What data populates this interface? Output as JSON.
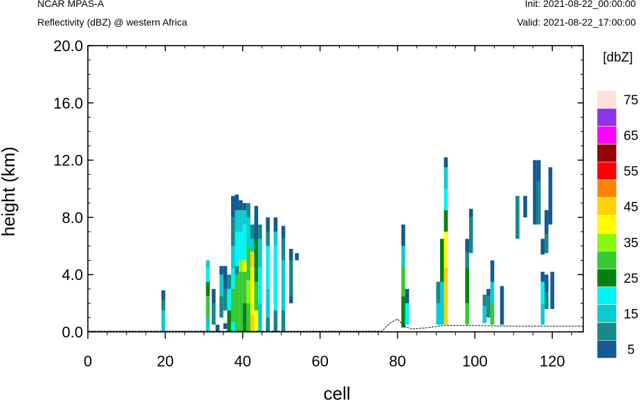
{
  "header": {
    "model": "NCAR MPAS-A",
    "field": "Reflectivity (dBZ) @ western Africa",
    "init": "Init: 2021-08-22_00:00:00",
    "valid": "Valid: 2021-08-22_17:00:00"
  },
  "chart_data": {
    "type": "heatmap",
    "xlabel": "cell",
    "ylabel": "height (km)",
    "xlim": [
      0,
      128
    ],
    "ylim": [
      0,
      20
    ],
    "x_ticks": [
      "0",
      "20",
      "40",
      "60",
      "80",
      "100",
      "120"
    ],
    "y_ticks": [
      "0.0",
      "4.0",
      "8.0",
      "12.0",
      "16.0",
      "20.0"
    ],
    "colorbar": {
      "title": "[dbZ]",
      "labels": [
        "5",
        "15",
        "25",
        "35",
        "45",
        "55",
        "65",
        "75"
      ],
      "colors": [
        "#155a91",
        "#16898a",
        "#0ccbd2",
        "#00f4f4",
        "#03820f",
        "#37c932",
        "#86f90d",
        "#ffff00",
        "#fdd202",
        "#fe8502",
        "#ff0000",
        "#940404",
        "#ff00ff",
        "#8d35e6",
        "#fde2db"
      ]
    },
    "terrain": [
      [
        0,
        0.05
      ],
      [
        76,
        0.05
      ],
      [
        78,
        0.6
      ],
      [
        80,
        0.9
      ],
      [
        82,
        0.35
      ],
      [
        84,
        0.2
      ],
      [
        88,
        0.3
      ],
      [
        92,
        0.45
      ],
      [
        100,
        0.45
      ],
      [
        108,
        0.4
      ],
      [
        120,
        0.4
      ],
      [
        128,
        0.4
      ]
    ],
    "columns": [
      {
        "x": 19.5,
        "segments": [
          [
            0,
            1.5,
            2
          ],
          [
            1.5,
            2.2,
            1
          ],
          [
            2.2,
            2.9,
            0
          ]
        ]
      },
      {
        "x": 31,
        "segments": [
          [
            0,
            1,
            2
          ],
          [
            1,
            2.5,
            5
          ],
          [
            2.5,
            3.5,
            4
          ],
          [
            3.5,
            4.5,
            3
          ],
          [
            4.5,
            5,
            2
          ]
        ]
      },
      {
        "x": 32.5,
        "segments": [
          [
            0.5,
            2,
            1
          ],
          [
            2,
            3,
            0
          ]
        ]
      },
      {
        "x": 33.5,
        "segments": [
          [
            0,
            0.5,
            0
          ]
        ]
      },
      {
        "x": 34.5,
        "segments": [
          [
            1,
            2.5,
            1
          ],
          [
            2.5,
            4,
            2
          ],
          [
            4,
            4.6,
            0
          ]
        ]
      },
      {
        "x": 35.5,
        "segments": [
          [
            0.2,
            0.6,
            0
          ],
          [
            1.5,
            3,
            1
          ],
          [
            3,
            4.6,
            0
          ]
        ]
      },
      {
        "x": 36.5,
        "segments": [
          [
            0,
            1.5,
            4
          ],
          [
            1.5,
            3,
            3
          ],
          [
            3,
            4,
            1
          ]
        ]
      },
      {
        "x": 37.5,
        "segments": [
          [
            0,
            0.7,
            3
          ],
          [
            0.7,
            3,
            5
          ],
          [
            3,
            4.4,
            3
          ],
          [
            4.4,
            6,
            2
          ],
          [
            6,
            8,
            1
          ],
          [
            8,
            9.5,
            0
          ]
        ]
      },
      {
        "x": 38.5,
        "segments": [
          [
            0,
            4,
            5
          ],
          [
            4,
            4.6,
            1
          ],
          [
            4.6,
            7,
            3
          ],
          [
            7,
            8.5,
            2
          ],
          [
            8.5,
            9.6,
            0
          ]
        ]
      },
      {
        "x": 39.5,
        "segments": [
          [
            0,
            4.2,
            5
          ],
          [
            4.2,
            5,
            6
          ],
          [
            5,
            7,
            3
          ],
          [
            7,
            8.5,
            2
          ],
          [
            8.5,
            9.2,
            0
          ]
        ]
      },
      {
        "x": 40.5,
        "segments": [
          [
            0,
            2,
            4
          ],
          [
            2,
            4.2,
            5
          ],
          [
            4.2,
            5,
            7
          ],
          [
            5,
            7.5,
            3
          ],
          [
            7.5,
            8.5,
            2
          ],
          [
            8.5,
            9,
            0
          ]
        ]
      },
      {
        "x": 41.5,
        "segments": [
          [
            0,
            2,
            5
          ],
          [
            2,
            3.6,
            6
          ],
          [
            3.6,
            6,
            5
          ],
          [
            6,
            8,
            2
          ],
          [
            8,
            9,
            1
          ]
        ]
      },
      {
        "x": 42.5,
        "segments": [
          [
            0,
            1.2,
            8
          ],
          [
            1.2,
            4.5,
            7
          ],
          [
            4.5,
            5.6,
            8
          ],
          [
            5.6,
            6.5,
            2
          ],
          [
            6.5,
            7.5,
            1
          ]
        ]
      },
      {
        "x": 43.5,
        "segments": [
          [
            0,
            1.5,
            7
          ],
          [
            1.5,
            3.5,
            5
          ],
          [
            3.5,
            6.5,
            4
          ],
          [
            6.5,
            8.8,
            0
          ]
        ]
      },
      {
        "x": 44.5,
        "segments": [
          [
            0,
            2,
            2
          ],
          [
            2,
            4.5,
            3
          ],
          [
            4.5,
            6.5,
            2
          ],
          [
            6.5,
            7.5,
            1
          ]
        ]
      },
      {
        "x": 46.5,
        "segments": [
          [
            0,
            1,
            1
          ],
          [
            1,
            3,
            2
          ],
          [
            3,
            6,
            3
          ],
          [
            6,
            7,
            1
          ],
          [
            7,
            8,
            0
          ]
        ]
      },
      {
        "x": 48.5,
        "segments": [
          [
            0,
            1.5,
            1
          ],
          [
            1.5,
            6,
            3
          ],
          [
            6,
            7,
            2
          ],
          [
            7,
            8,
            0
          ]
        ]
      },
      {
        "x": 50.5,
        "segments": [
          [
            0,
            1.5,
            1
          ],
          [
            1.5,
            5,
            2
          ],
          [
            5,
            6.5,
            1
          ],
          [
            6.5,
            7.4,
            0
          ]
        ]
      },
      {
        "x": 52.5,
        "segments": [
          [
            2,
            2.5,
            0
          ],
          [
            2.5,
            5,
            1
          ],
          [
            5,
            5.8,
            0
          ]
        ]
      },
      {
        "x": 54,
        "segments": [
          [
            5,
            5.5,
            0
          ]
        ]
      },
      {
        "x": 81.5,
        "segments": [
          [
            0.3,
            2.5,
            4
          ],
          [
            2.5,
            4.5,
            5
          ],
          [
            4.5,
            6,
            2
          ],
          [
            6,
            7.5,
            0
          ]
        ]
      },
      {
        "x": 82.5,
        "segments": [
          [
            0.5,
            2,
            3
          ],
          [
            2,
            3,
            0
          ]
        ]
      },
      {
        "x": 90.5,
        "segments": [
          [
            0.5,
            2,
            2
          ],
          [
            2,
            3.5,
            1
          ]
        ]
      },
      {
        "x": 91.5,
        "segments": [
          [
            0.5,
            3.5,
            2
          ],
          [
            3.5,
            6.5,
            4
          ]
        ]
      },
      {
        "x": 92.5,
        "segments": [
          [
            0.5,
            4.5,
            8
          ],
          [
            4.5,
            7,
            7
          ],
          [
            7,
            8.5,
            4
          ],
          [
            8.5,
            10,
            3
          ],
          [
            10,
            11.5,
            2
          ],
          [
            11.5,
            12.2,
            0
          ]
        ]
      },
      {
        "x": 98,
        "segments": [
          [
            0.5,
            2,
            5
          ],
          [
            2,
            4.5,
            4
          ],
          [
            4.5,
            5.6,
            1
          ],
          [
            5.6,
            6.5,
            0
          ]
        ]
      },
      {
        "x": 99,
        "segments": [
          [
            5.5,
            8,
            1
          ],
          [
            8,
            8.6,
            0
          ]
        ]
      },
      {
        "x": 102.5,
        "segments": [
          [
            0.6,
            1.8,
            2
          ],
          [
            1.8,
            2.6,
            1
          ]
        ]
      },
      {
        "x": 103.5,
        "segments": [
          [
            1,
            2.5,
            1
          ],
          [
            2.5,
            3,
            0
          ]
        ]
      },
      {
        "x": 104.5,
        "segments": [
          [
            0.5,
            2,
            5
          ],
          [
            2,
            3.5,
            2
          ],
          [
            3.5,
            5,
            0
          ]
        ]
      },
      {
        "x": 107,
        "segments": [
          [
            0.5,
            3.2,
            0
          ]
        ]
      },
      {
        "x": 111,
        "segments": [
          [
            6.5,
            9.5,
            1
          ]
        ]
      },
      {
        "x": 113,
        "segments": [
          [
            8,
            9.5,
            0
          ]
        ]
      },
      {
        "x": 115.5,
        "segments": [
          [
            7.5,
            12,
            0
          ]
        ]
      },
      {
        "x": 116.5,
        "segments": [
          [
            7.5,
            10.5,
            1
          ],
          [
            10.5,
            12,
            0
          ]
        ]
      },
      {
        "x": 117.5,
        "segments": [
          [
            0.5,
            2,
            2
          ],
          [
            2,
            3.5,
            3
          ],
          [
            3.5,
            4.2,
            0
          ],
          [
            5.4,
            6.5,
            0
          ]
        ]
      },
      {
        "x": 118.5,
        "segments": [
          [
            1.6,
            2.8,
            1
          ],
          [
            2.8,
            4,
            0
          ],
          [
            5.5,
            6.8,
            1
          ],
          [
            6.8,
            8.5,
            0
          ]
        ]
      },
      {
        "x": 119.5,
        "segments": [
          [
            7.5,
            11.5,
            0
          ]
        ]
      },
      {
        "x": 120,
        "segments": [
          [
            1.6,
            4.2,
            0
          ]
        ]
      }
    ]
  }
}
